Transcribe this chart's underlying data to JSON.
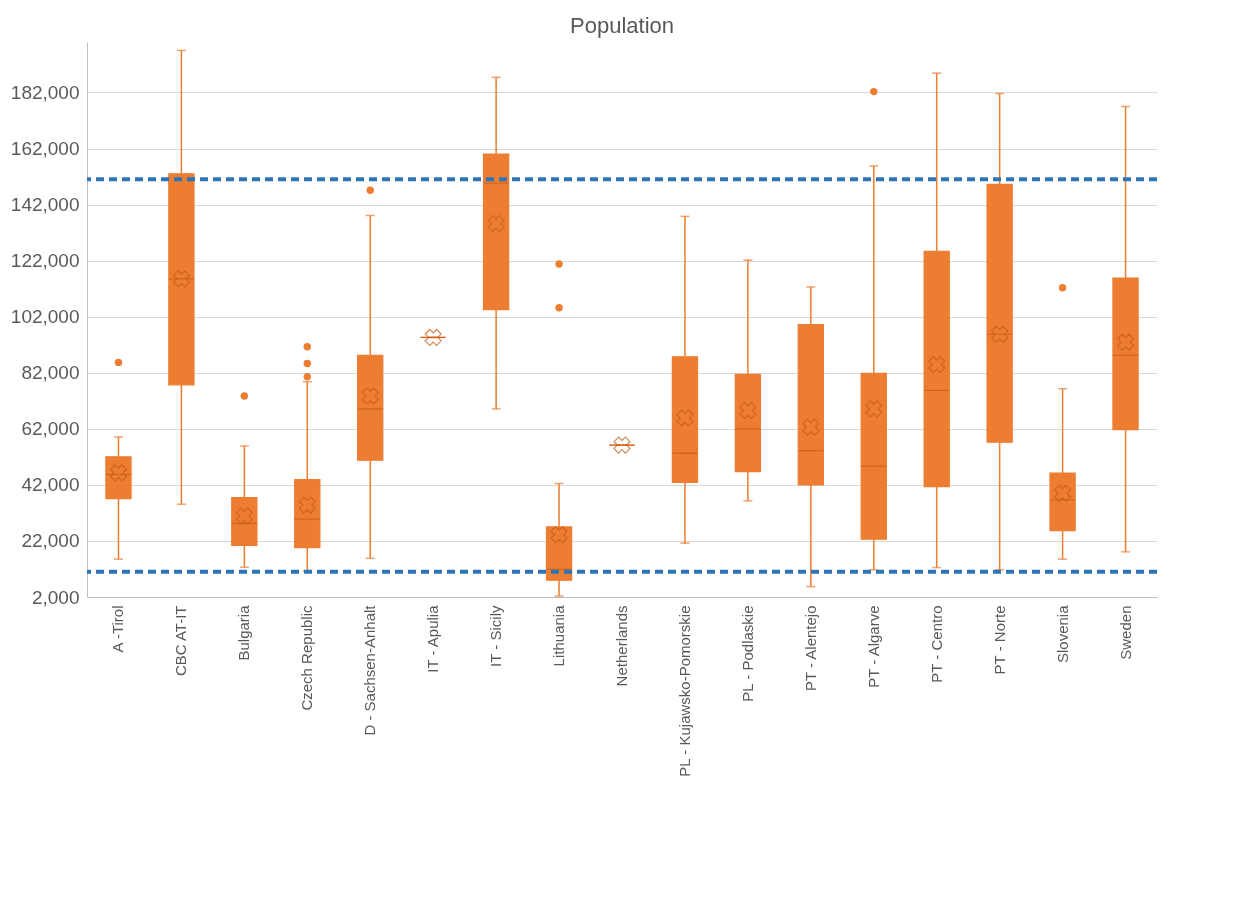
{
  "chart_data": {
    "type": "box",
    "title": "Population",
    "categories": [
      "A -Tirol",
      "CBC AT-IT",
      "Bulgaria",
      "Czech Republic",
      "D - Sachsen-Anhalt",
      "IT - Apulia",
      "IT - Sicily",
      "Lithuania",
      "Netherlands",
      "PL - Kujawsko-Pomorskie",
      "PL - Podlaskie",
      "PT - Alentejo",
      "PT - Algarve",
      "PT - Centro",
      "PT - Norte",
      "Slovenia",
      "Sweden"
    ],
    "color": "#ed7d31",
    "boxes": [
      {
        "low": 15500,
        "q1": 37100,
        "median": 45700,
        "q3": 52000,
        "high": 59100,
        "mean": 46300,
        "outliers": [
          85700
        ]
      },
      {
        "low": 35100,
        "q1": 77700,
        "median": 115500,
        "q3": 153000,
        "high": 197000,
        "mean": 115500
      },
      {
        "low": 12600,
        "q1": 20400,
        "median": 28200,
        "q3": 37500,
        "high": 55900,
        "mean": 30900,
        "outliers": [
          73700
        ]
      },
      {
        "low": 11300,
        "q1": 19600,
        "median": 29800,
        "q3": 43900,
        "high": 78800,
        "mean": 34800,
        "outliers": [
          80600,
          85300,
          91300
        ]
      },
      {
        "low": 15800,
        "q1": 50800,
        "median": 69100,
        "q3": 88200,
        "high": 138100,
        "mean": 73700,
        "outliers": [
          147100
        ]
      },
      {
        "low": 94600,
        "q1": 94600,
        "median": 94600,
        "q3": 94600,
        "high": 94600,
        "mean": 94600
      },
      {
        "low": 69100,
        "q1": 104500,
        "median": 149700,
        "q3": 160000,
        "high": 187400,
        "mean": 135200
      },
      {
        "low": 2300,
        "q1": 8000,
        "median": 11900,
        "q3": 27000,
        "high": 42500,
        "mean": 24200,
        "outliers": [
          105200,
          120800
        ]
      },
      {
        "low": 56200,
        "q1": 56200,
        "median": 56200,
        "q3": 56200,
        "high": 56200,
        "mean": 56200
      },
      {
        "low": 21200,
        "q1": 42900,
        "median": 53300,
        "q3": 87700,
        "high": 137800,
        "mean": 65900
      },
      {
        "low": 36300,
        "q1": 46700,
        "median": 61900,
        "q3": 81400,
        "high": 122200,
        "mean": 68500
      },
      {
        "low": 5700,
        "q1": 42000,
        "median": 54200,
        "q3": 99200,
        "high": 112600,
        "mean": 62600
      },
      {
        "low": 11700,
        "q1": 22600,
        "median": 48700,
        "q3": 81800,
        "high": 155800,
        "mean": 69100,
        "outliers": [
          182300
        ]
      },
      {
        "low": 12500,
        "q1": 41400,
        "median": 75700,
        "q3": 125300,
        "high": 188900,
        "mean": 84900
      },
      {
        "low": 11700,
        "q1": 57200,
        "median": 95700,
        "q3": 149200,
        "high": 181600,
        "mean": 95700
      },
      {
        "low": 15500,
        "q1": 25700,
        "median": 36700,
        "q3": 46200,
        "high": 76300,
        "mean": 39000,
        "outliers": [
          112300
        ]
      },
      {
        "low": 18100,
        "q1": 61700,
        "median": 88200,
        "q3": 115800,
        "high": 177000,
        "mean": 92900
      }
    ],
    "ylim": [
      2000,
      200000
    ],
    "yticks": [
      {
        "value": 2000,
        "label": "2,000"
      },
      {
        "value": 22000,
        "label": "22,000"
      },
      {
        "value": 42000,
        "label": "42,000"
      },
      {
        "value": 62000,
        "label": "62,000"
      },
      {
        "value": 82000,
        "label": "82,000"
      },
      {
        "value": 102000,
        "label": "102,000"
      },
      {
        "value": 122000,
        "label": "122,000"
      },
      {
        "value": 142000,
        "label": "142,000"
      },
      {
        "value": 162000,
        "label": "162,000"
      },
      {
        "value": 182000,
        "label": "182,000"
      }
    ],
    "grid": "y",
    "ref_lines": [
      {
        "axis": "y",
        "value": 151000,
        "color": "#2e75b6",
        "line_style": "dashed"
      },
      {
        "axis": "y",
        "value": 11000,
        "color": "#2e75b6",
        "line_style": "dashed"
      }
    ]
  }
}
